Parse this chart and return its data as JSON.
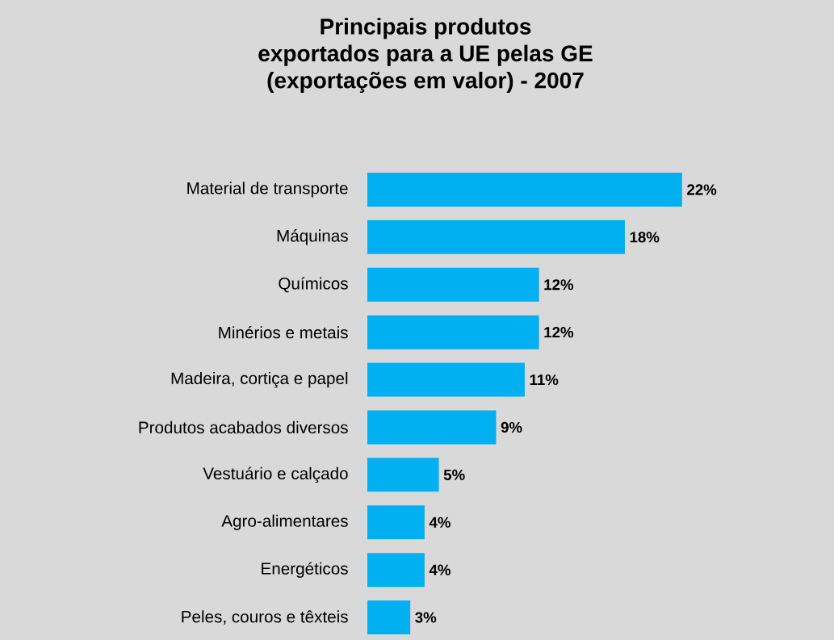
{
  "chart_data": {
    "type": "bar",
    "orientation": "horizontal",
    "title": "Principais produtos\nexportados para a UE pelas GE\n(exportações em valor) - 2007",
    "categories": [
      "Material de transporte",
      "Máquinas",
      "Químicos",
      "Minérios e metais",
      "Madeira, cortiça e papel",
      "Produtos acabados diversos",
      "Vestuário e calçado",
      "Agro-alimentares",
      "Energéticos",
      "Peles, couros e têxteis"
    ],
    "values": [
      22,
      18,
      12,
      12,
      11,
      9,
      5,
      4,
      4,
      3
    ],
    "value_labels": [
      "22%",
      "18%",
      "12%",
      "12%",
      "11%",
      "9%",
      "5%",
      "4%",
      "4%",
      "3%"
    ],
    "color": "#00b0f0"
  }
}
